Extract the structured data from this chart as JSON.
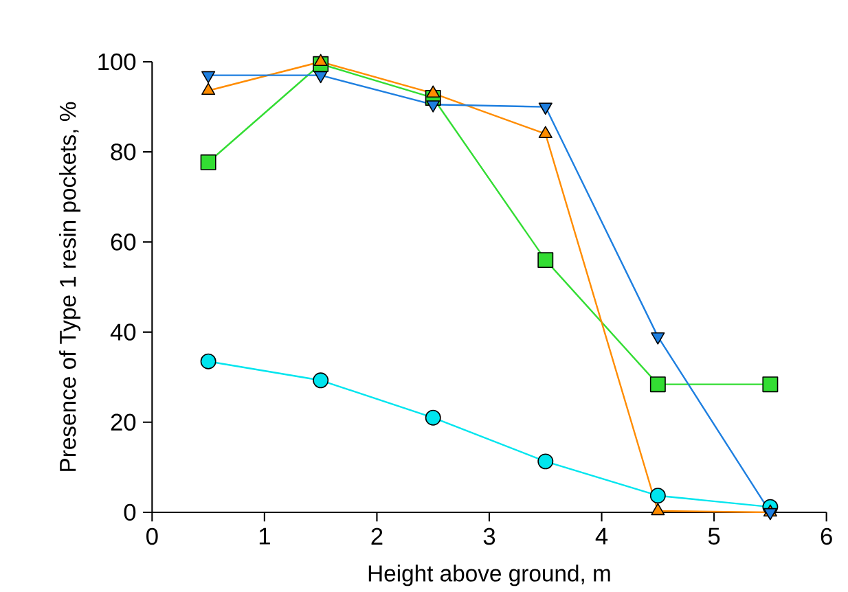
{
  "chart_data": {
    "type": "line",
    "xlabel": "Height above ground, m",
    "ylabel": "Presence of Type 1 resin pockets, %",
    "x": [
      0.5,
      1.5,
      2.5,
      3.5,
      4.5,
      5.5
    ],
    "xlim": [
      0,
      6
    ],
    "xticks": [
      0,
      1,
      2,
      3,
      4,
      5,
      6
    ],
    "ylim": [
      0,
      100
    ],
    "yticks": [
      0,
      20,
      40,
      60,
      80,
      100
    ],
    "grid": false,
    "line_style": "solid",
    "series": [
      {
        "color": "#00e5ee",
        "marker": "circle",
        "values": [
          33.5,
          29.3,
          21,
          11.3,
          3.7,
          1.2
        ]
      },
      {
        "color": "#33dd33",
        "marker": "square",
        "values": [
          77.7,
          99.5,
          92,
          56,
          28.4,
          28.4
        ]
      },
      {
        "color": "#ff8c00",
        "marker": "triangle",
        "values": [
          93.6,
          100,
          93,
          84,
          0.3,
          0
        ]
      },
      {
        "color": "#1e7fe0",
        "marker": "triangle-down",
        "values": [
          97,
          97,
          90.5,
          90,
          39,
          0
        ]
      }
    ]
  }
}
